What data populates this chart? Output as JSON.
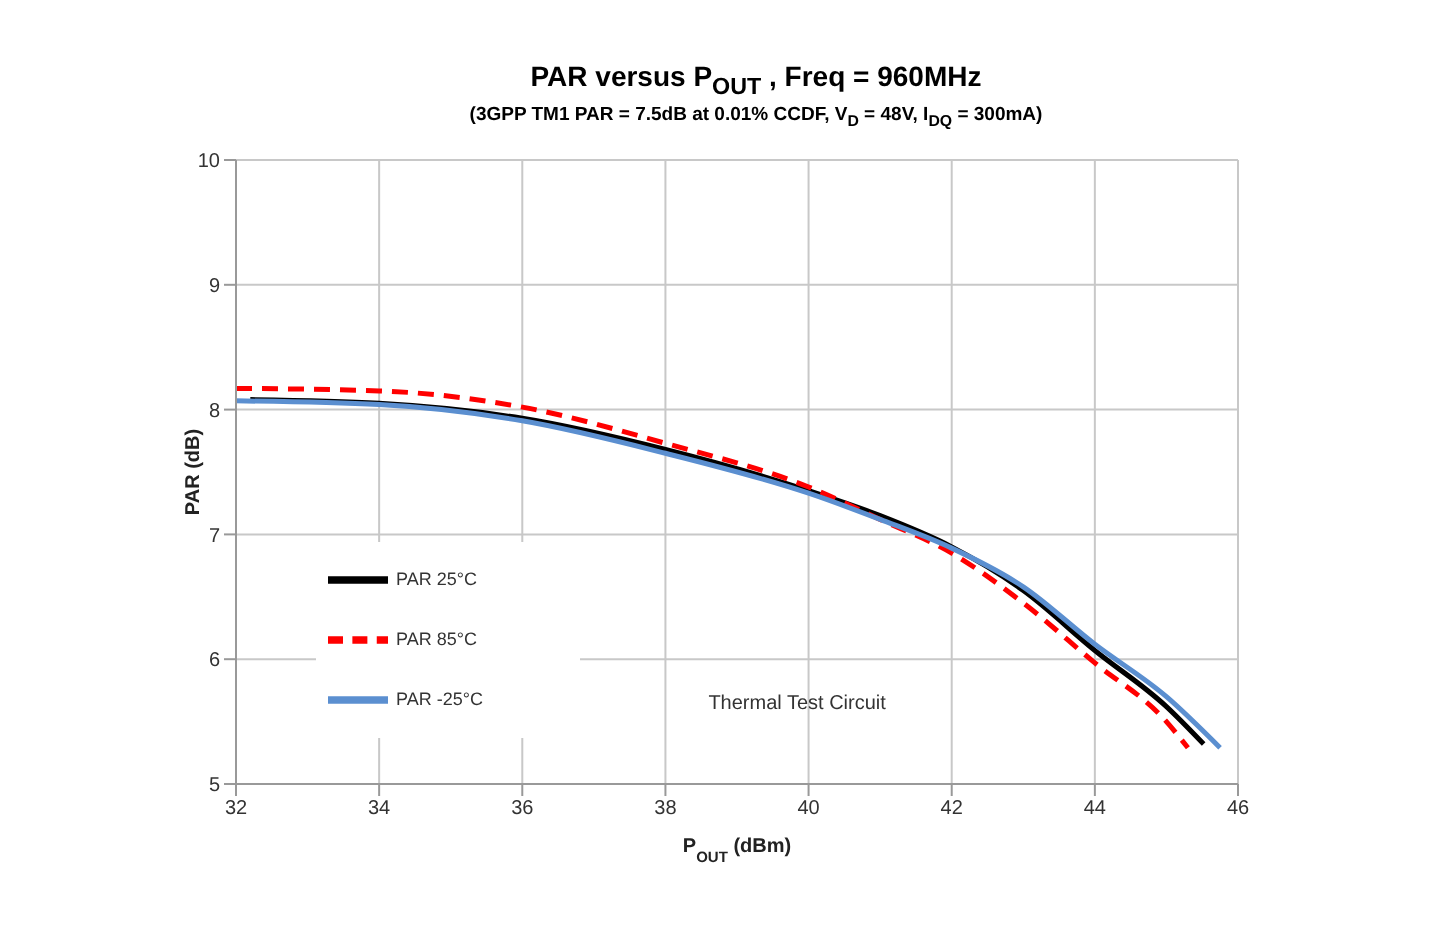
{
  "chart_data": {
    "type": "line",
    "title": "PAR versus P$_{OUT}$ , Freq = 960MHz",
    "subtitle": "(3GPP TM1 PAR = 7.5dB at 0.01% CCDF, V$_{D}$ = 48V, I$_{DQ}$ = 300mA)",
    "xlabel": "P$_{OUT}$ (dBm)",
    "ylabel": "PAR (dB)",
    "annotations": [
      "Thermal Test Circuit"
    ],
    "series": [
      {
        "name": "PAR 25°C",
        "color": "#000000",
        "line_style": "solid",
        "x": [
          32.2,
          34,
          36,
          38,
          40,
          41,
          42,
          43,
          44,
          45,
          45.52
        ],
        "values": [
          8.08,
          8.05,
          7.93,
          7.68,
          7.35,
          7.15,
          6.9,
          6.55,
          6.07,
          5.62,
          5.32
        ]
      },
      {
        "name": "PAR 85°C",
        "color": "#ff0000",
        "line_style": "dashed",
        "x": [
          32,
          34,
          36,
          38,
          40,
          41,
          42,
          43,
          44,
          45,
          45.3
        ],
        "values": [
          8.17,
          8.15,
          8.02,
          7.73,
          7.38,
          7.12,
          6.85,
          6.45,
          5.97,
          5.5,
          5.29
        ]
      },
      {
        "name": "PAR -25°C",
        "color": "#5b8fd0",
        "line_style": "solid",
        "x": [
          32,
          34,
          36,
          38,
          40,
          41,
          42,
          43,
          44,
          45,
          45.75
        ],
        "values": [
          8.07,
          8.04,
          7.91,
          7.65,
          7.33,
          7.12,
          6.89,
          6.58,
          6.12,
          5.7,
          5.29
        ]
      }
    ],
    "xlim": [
      32,
      46
    ],
    "xticks": [
      32,
      34,
      36,
      38,
      40,
      42,
      44,
      46
    ],
    "ylim": [
      5,
      10
    ],
    "yticks": [
      5,
      6,
      7,
      8,
      9,
      10
    ],
    "grid": true,
    "legend": "bottom left",
    "marker": "none"
  }
}
